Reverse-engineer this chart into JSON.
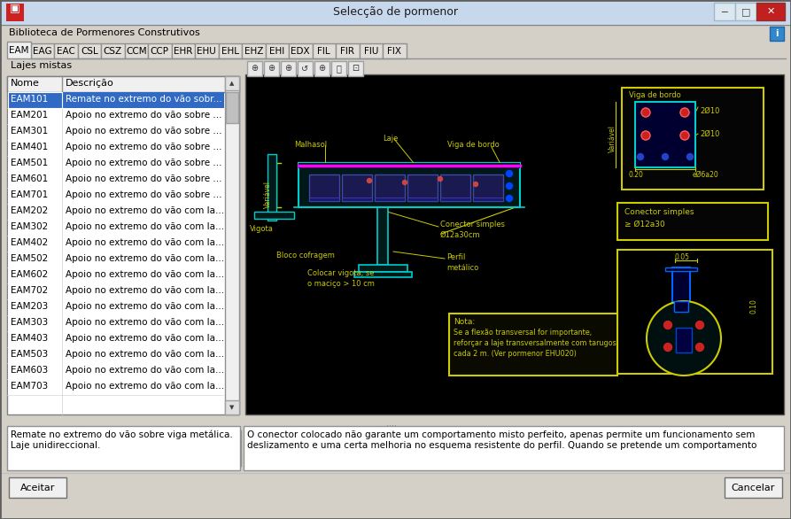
{
  "title": "Selecção de pormenor",
  "tabs": [
    "EAM",
    "EAG",
    "EAC",
    "CSL",
    "CSZ",
    "CCM",
    "CCP",
    "EHR",
    "EHU",
    "EHL",
    "EHZ",
    "EHI",
    "EDX",
    "FIL",
    "FIR",
    "FIU",
    "FIX"
  ],
  "active_tab": "EAM",
  "section_label": "Lajes mistas",
  "list_headers": [
    "Nome",
    "Descrição"
  ],
  "list_items": [
    [
      "EAM101",
      "Remate no extremo do vão sobr..."
    ],
    [
      "EAM201",
      "Apoio no extremo do vão sobre ..."
    ],
    [
      "EAM301",
      "Apoio no extremo do vão sobre ..."
    ],
    [
      "EAM401",
      "Apoio no extremo do vão sobre ..."
    ],
    [
      "EAM501",
      "Apoio no extremo do vão sobre ..."
    ],
    [
      "EAM601",
      "Apoio no extremo do vão sobre ..."
    ],
    [
      "EAM701",
      "Apoio no extremo do vão sobre ..."
    ],
    [
      "EAM202",
      "Apoio no extremo do vão com la..."
    ],
    [
      "EAM302",
      "Apoio no extremo do vão com la..."
    ],
    [
      "EAM402",
      "Apoio no extremo do vão com la..."
    ],
    [
      "EAM502",
      "Apoio no extremo do vão com la..."
    ],
    [
      "EAM602",
      "Apoio no extremo do vão com la..."
    ],
    [
      "EAM702",
      "Apoio no extremo do vão com la..."
    ],
    [
      "EAM203",
      "Apoio no extremo do vão com la..."
    ],
    [
      "EAM303",
      "Apoio no extremo do vão com la..."
    ],
    [
      "EAM403",
      "Apoio no extremo do vão com la..."
    ],
    [
      "EAM503",
      "Apoio no extremo do vão com la..."
    ],
    [
      "EAM603",
      "Apoio no extremo do vão com la..."
    ],
    [
      "EAM703",
      "Apoio no extremo do vão com la..."
    ]
  ],
  "selected_item": 0,
  "bottom_left_text": "Remate no extremo do vão sobre viga metálica.\nLaje unidireccional.",
  "bottom_right_text": "O conector colocado não garante um comportamento misto perfeito, apenas permite um funcionamento sem\ndeslizamento e uma certa melhoria no esquema resistente do perfil. Quando se pretende um comportamento",
  "button_aceitar": "Aceitar",
  "button_cancelar": "Cancelar",
  "library_label": "Biblioteca de Pormenores Construtivos",
  "canvas_bg": "#000000",
  "window_bg": "#d4d0c8",
  "titlebar_bg": "#c8d8ec",
  "tab_active_bg": "#f0f0f0",
  "tab_inactive_bg": "#e0ddd8",
  "list_bg": "white",
  "selected_bg": "#316ac5",
  "selected_text": "white",
  "normal_text": "black"
}
